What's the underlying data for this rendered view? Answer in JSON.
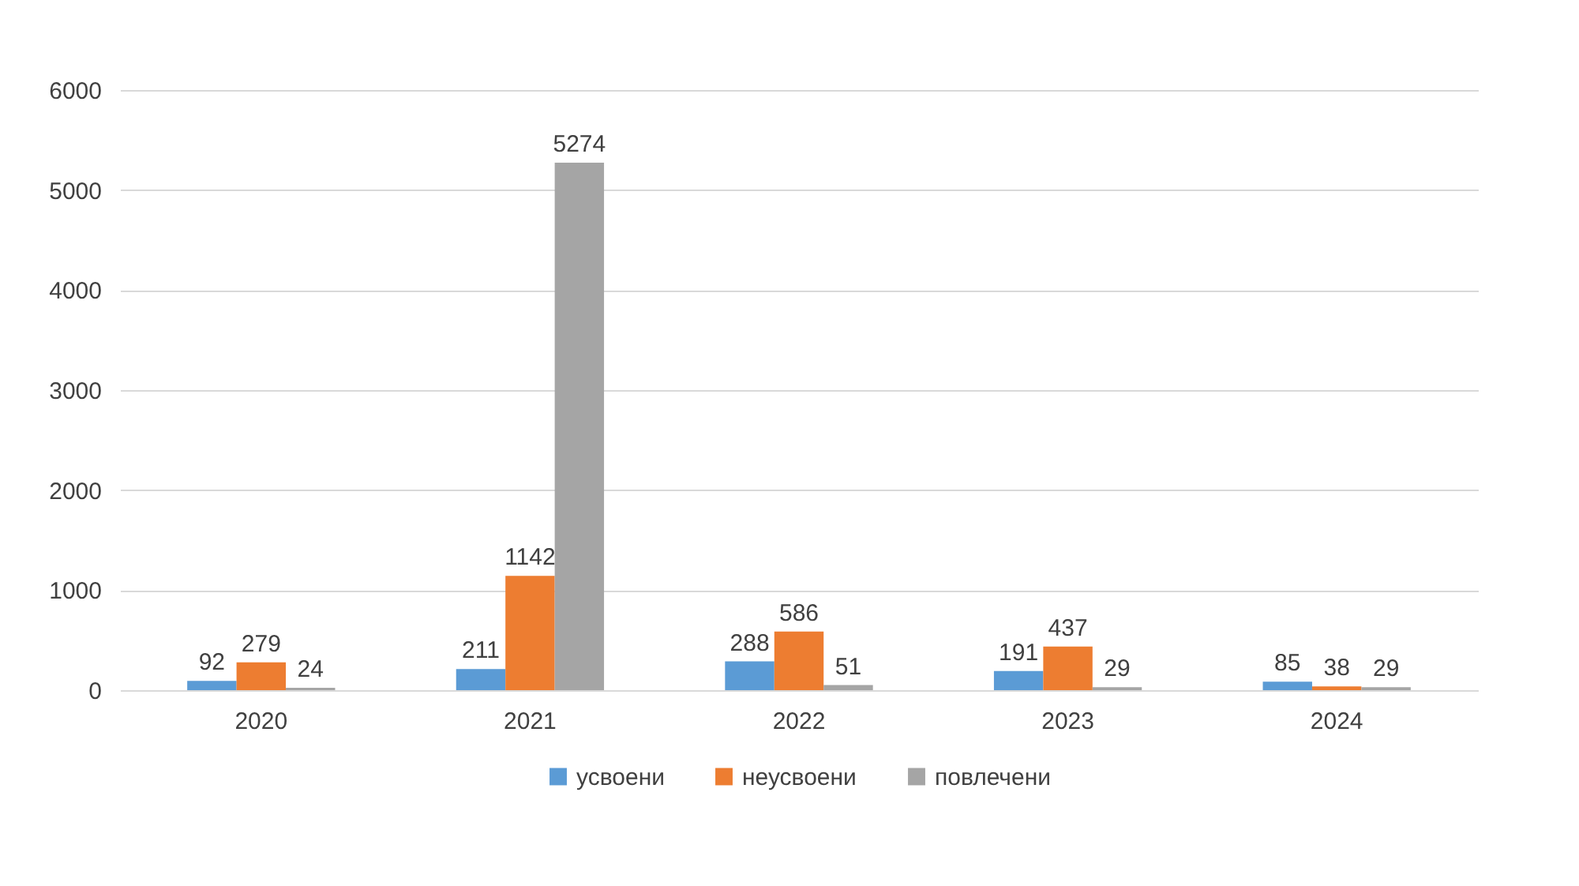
{
  "chart_data": {
    "type": "bar",
    "categories": [
      "2020",
      "2021",
      "2022",
      "2023",
      "2024"
    ],
    "series": [
      {
        "name": "усвоени",
        "color": "#5b9bd5",
        "values": [
          92,
          211,
          288,
          191,
          85
        ]
      },
      {
        "name": "неусвоени",
        "color": "#ed7d31",
        "values": [
          279,
          1142,
          586,
          437,
          38
        ]
      },
      {
        "name": "повлечени",
        "color": "#a5a5a5",
        "values": [
          24,
          5274,
          51,
          29,
          29
        ]
      }
    ],
    "ylim": [
      0,
      6000
    ],
    "yticks": [
      0,
      1000,
      2000,
      3000,
      4000,
      5000,
      6000
    ],
    "grid": "y",
    "legend": "bottom",
    "data_labels": true
  }
}
